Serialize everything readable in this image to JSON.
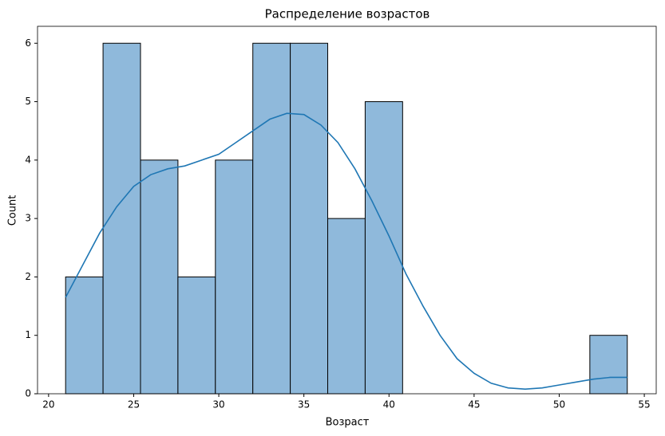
{
  "chart_data": {
    "type": "histogram",
    "title": "Распределение возрастов",
    "x_label": "Возраст",
    "y_label": "Count",
    "bins": [
      21,
      23.2,
      25.4,
      27.6,
      29.8,
      32,
      34.2,
      36.4,
      38.6,
      40.8,
      43,
      45.2,
      47.4,
      49.6,
      51.8,
      54
    ],
    "values": [
      2,
      6,
      4,
      2,
      4,
      6,
      6,
      3,
      5,
      0,
      0,
      0,
      0,
      0,
      1
    ],
    "color": "#8fb9db",
    "edgecolor": "#000000",
    "kde": {
      "color": "#1f77b4",
      "x": [
        21,
        22,
        23,
        24,
        25,
        26,
        27,
        28,
        29,
        30,
        31,
        32,
        33,
        34,
        35,
        36,
        37,
        38,
        39,
        40,
        41,
        42,
        43,
        44,
        45,
        46,
        47,
        48,
        49,
        50,
        51,
        52,
        53,
        54
      ],
      "values": [
        1.65,
        2.2,
        2.75,
        3.2,
        3.55,
        3.75,
        3.85,
        3.9,
        4.0,
        4.1,
        4.3,
        4.5,
        4.7,
        4.8,
        4.78,
        4.6,
        4.3,
        3.85,
        3.3,
        2.7,
        2.05,
        1.5,
        1.0,
        0.6,
        0.35,
        0.18,
        0.1,
        0.08,
        0.1,
        0.15,
        0.2,
        0.25,
        0.28,
        0.28
      ]
    },
    "xlim": [
      19.35,
      55.7
    ],
    "ylim": [
      0,
      6.29
    ],
    "xticks": [
      20,
      25,
      30,
      35,
      40,
      45,
      50,
      55
    ],
    "yticks": [
      0,
      1,
      2,
      3,
      4,
      5,
      6
    ]
  }
}
